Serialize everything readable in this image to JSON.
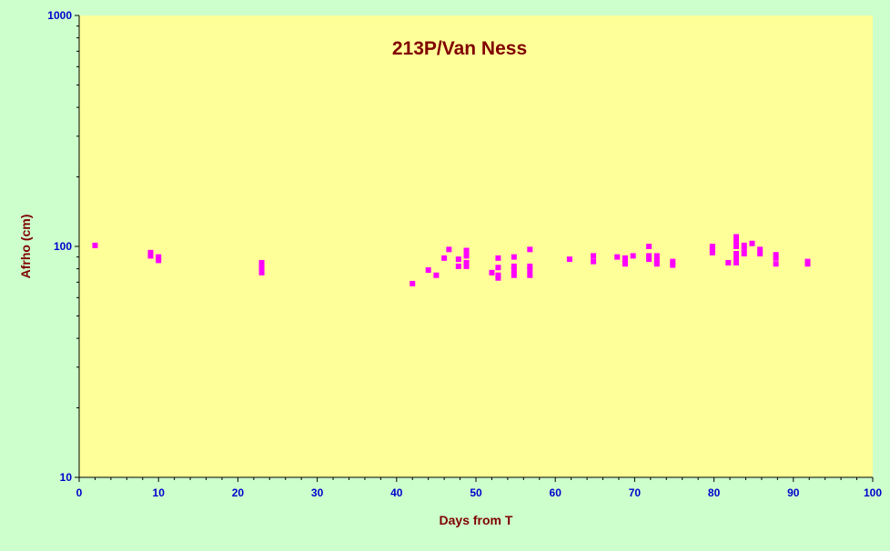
{
  "colors": {
    "background": "#ccffcc",
    "plot_area": "#ffff99",
    "marker": "#ff00ff",
    "title": "#800000",
    "tick_labels": "#0000cc",
    "axis": "#000000"
  },
  "chart_data": {
    "type": "scatter",
    "title": "213P/Van Ness",
    "xlabel": "Days from T",
    "ylabel": "Afrho (cm)",
    "xlim": [
      0,
      100
    ],
    "ylim": [
      10,
      1000
    ],
    "yscale": "log",
    "grid": false,
    "legend": "none",
    "x_ticks": [
      "0",
      "10",
      "20",
      "30",
      "40",
      "50",
      "60",
      "70",
      "80",
      "90",
      "100"
    ],
    "y_ticks": [
      "10",
      "100",
      "1000"
    ],
    "series": [
      {
        "marker": "square",
        "points": [
          [
            2,
            101
          ],
          [
            9,
            94
          ],
          [
            9,
            91
          ],
          [
            10,
            90
          ],
          [
            10,
            87
          ],
          [
            23,
            85
          ],
          [
            23,
            81
          ],
          [
            23,
            77
          ],
          [
            42,
            69
          ],
          [
            44,
            79
          ],
          [
            45,
            75
          ],
          [
            46,
            89
          ],
          [
            46.6,
            97
          ],
          [
            47.8,
            88
          ],
          [
            47.8,
            82
          ],
          [
            48.8,
            96
          ],
          [
            48.8,
            91
          ],
          [
            48.8,
            85
          ],
          [
            48.8,
            82
          ],
          [
            52,
            77
          ],
          [
            52.8,
            89
          ],
          [
            52.8,
            81
          ],
          [
            52.8,
            75
          ],
          [
            52.8,
            73
          ],
          [
            54.8,
            90
          ],
          [
            54.8,
            82
          ],
          [
            54.8,
            79
          ],
          [
            54.8,
            75
          ],
          [
            56.8,
            97
          ],
          [
            56.8,
            82
          ],
          [
            56.8,
            79
          ],
          [
            56.8,
            75
          ],
          [
            61.8,
            88
          ],
          [
            64.8,
            91
          ],
          [
            64.8,
            86
          ],
          [
            67.8,
            90
          ],
          [
            68.8,
            89
          ],
          [
            68.8,
            86
          ],
          [
            68.8,
            84
          ],
          [
            69.8,
            91
          ],
          [
            71.8,
            100
          ],
          [
            71.8,
            91
          ],
          [
            71.8,
            88
          ],
          [
            72.8,
            91
          ],
          [
            72.8,
            87
          ],
          [
            72.8,
            84
          ],
          [
            74.8,
            86
          ],
          [
            74.8,
            83
          ],
          [
            79.8,
            100
          ],
          [
            79.8,
            97
          ],
          [
            79.8,
            94
          ],
          [
            81.8,
            85
          ],
          [
            82.8,
            110
          ],
          [
            82.8,
            105
          ],
          [
            82.8,
            100
          ],
          [
            82.8,
            93
          ],
          [
            82.8,
            89
          ],
          [
            82.8,
            85
          ],
          [
            83.8,
            101
          ],
          [
            83.8,
            97
          ],
          [
            83.8,
            93
          ],
          [
            84.8,
            103
          ],
          [
            85.8,
            97
          ],
          [
            85.8,
            93
          ],
          [
            87.8,
            92
          ],
          [
            87.8,
            89
          ],
          [
            87.8,
            84
          ],
          [
            91.8,
            86
          ],
          [
            91.8,
            84
          ]
        ]
      }
    ]
  }
}
